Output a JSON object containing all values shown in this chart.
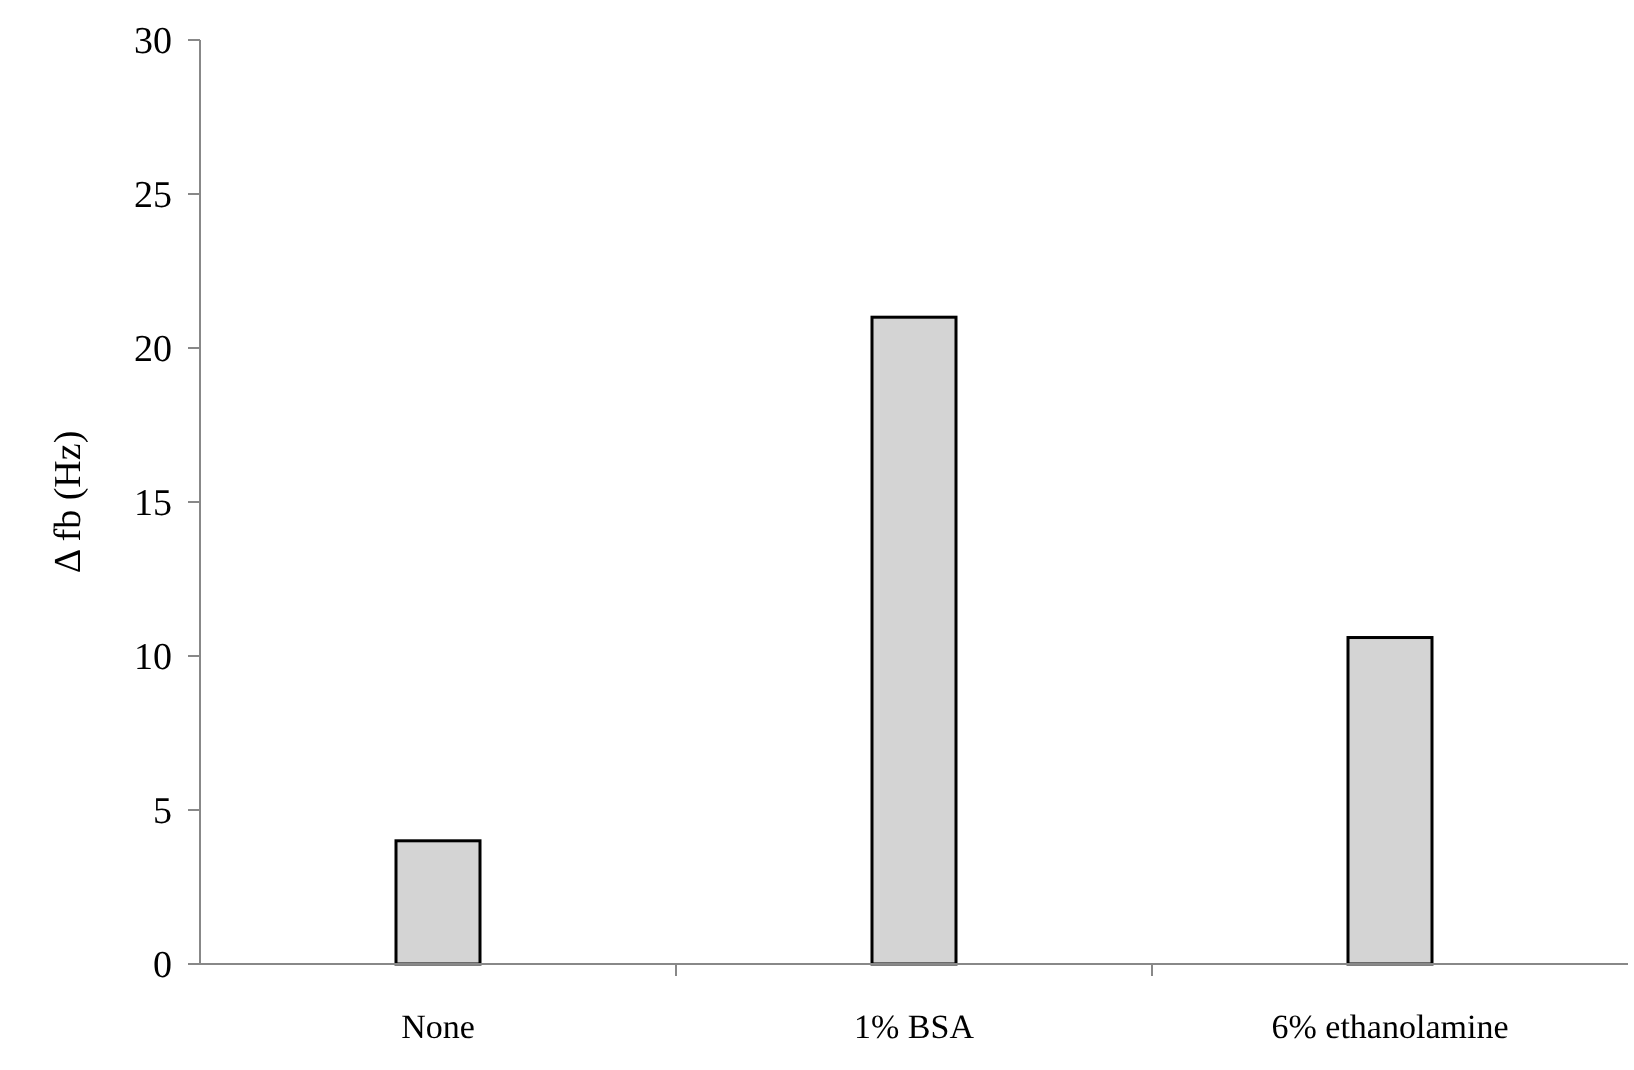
{
  "chart_data": {
    "type": "bar",
    "ylabel": "Δ fb (Hz)",
    "categories": [
      "None",
      "1% BSA",
      "6% ethanolamine"
    ],
    "values": [
      4,
      21,
      10.6
    ],
    "color": "#d4d4d4",
    "ylim": [
      0,
      30
    ],
    "yticks": [
      0,
      5,
      10,
      15,
      20,
      25,
      30
    ],
    "grid": false
  }
}
